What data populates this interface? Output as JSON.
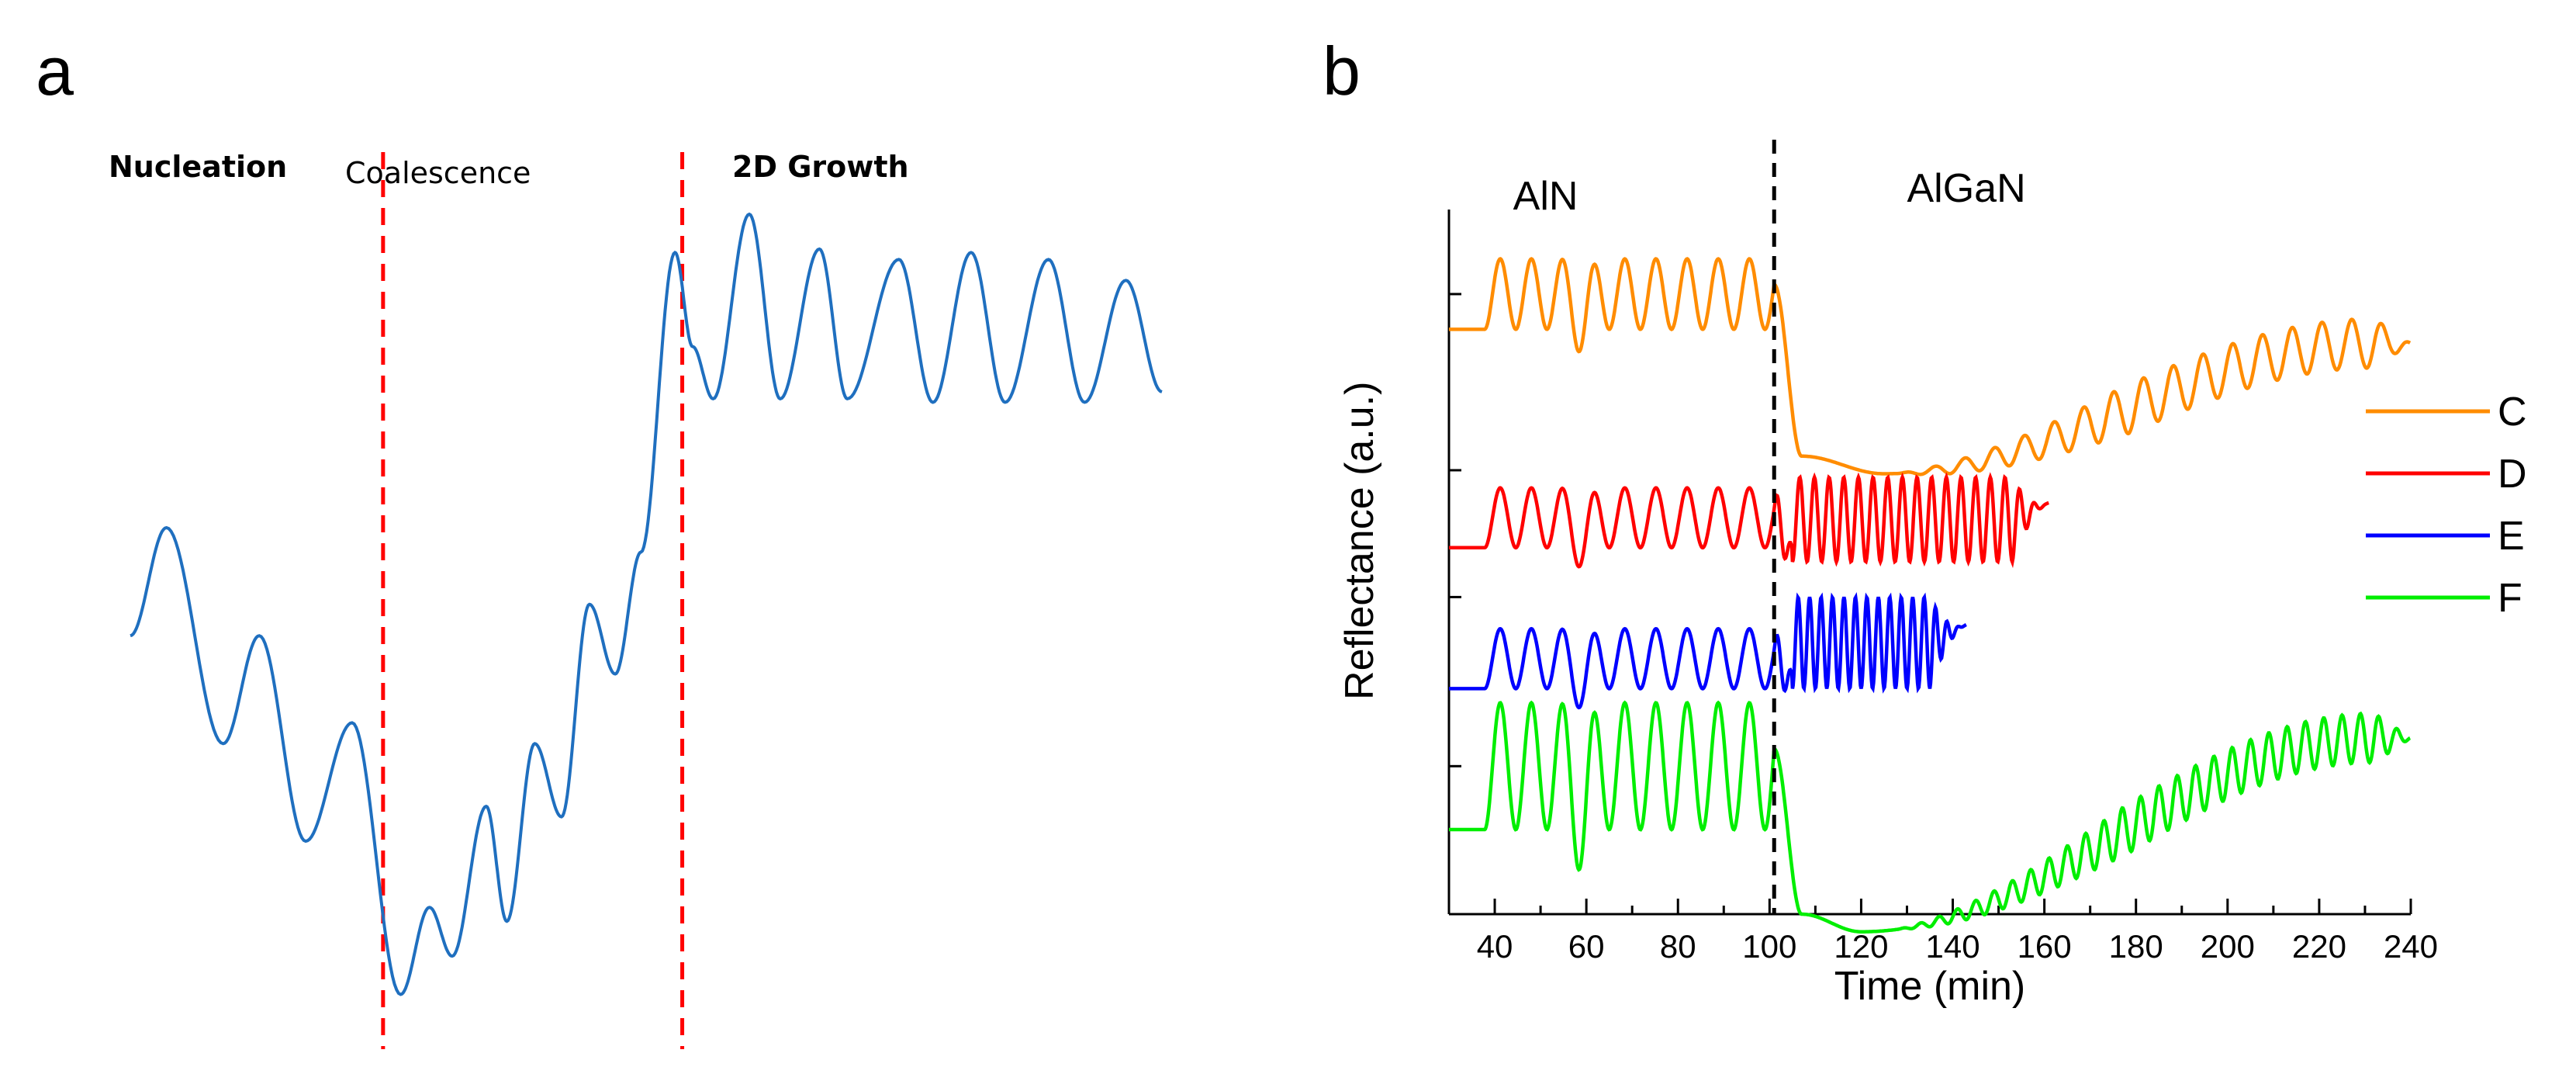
{
  "chart_data": [
    {
      "panel": "a",
      "type": "line",
      "title": "",
      "xlabel": "",
      "ylabel": "",
      "grid": false,
      "phases": [
        "Nucleation",
        "Coalescence",
        "2D Growth"
      ],
      "boundaries": [
        0.245,
        0.535
      ],
      "series": [
        {
          "name": "reflectance",
          "color": "#1f6fbf",
          "description": "schematic reflectance oscillation",
          "keypoints": [
            [
              0.0,
              0.54
            ],
            [
              0.035,
              0.85
            ],
            [
              0.09,
              0.23
            ],
            [
              0.125,
              0.54
            ],
            [
              0.17,
              -0.05
            ],
            [
              0.215,
              0.29
            ],
            [
              0.262,
              -0.49
            ],
            [
              0.29,
              -0.24
            ],
            [
              0.312,
              -0.38
            ],
            [
              0.345,
              0.05
            ],
            [
              0.365,
              -0.28
            ],
            [
              0.392,
              0.23
            ],
            [
              0.418,
              0.02
            ],
            [
              0.445,
              0.63
            ],
            [
              0.47,
              0.43
            ],
            [
              0.495,
              0.78
            ],
            [
              0.528,
              1.64
            ],
            [
              0.545,
              1.37
            ],
            [
              0.565,
              1.22
            ],
            [
              0.6,
              1.75
            ],
            [
              0.63,
              1.22
            ],
            [
              0.668,
              1.65
            ],
            [
              0.695,
              1.22
            ],
            [
              0.745,
              1.62
            ],
            [
              0.778,
              1.21
            ],
            [
              0.815,
              1.64
            ],
            [
              0.848,
              1.21
            ],
            [
              0.89,
              1.62
            ],
            [
              0.925,
              1.21
            ],
            [
              0.965,
              1.56
            ],
            [
              1.0,
              1.24
            ]
          ]
        }
      ]
    },
    {
      "panel": "b",
      "type": "line",
      "title": "",
      "xlabel": "Time (min)",
      "ylabel": "Reflectance (a.u.)",
      "xlim": [
        30,
        240
      ],
      "xticks": [
        40,
        60,
        80,
        100,
        120,
        140,
        160,
        180,
        200,
        220,
        240
      ],
      "ylim": [
        0,
        10
      ],
      "grid": false,
      "legend_position": "right",
      "regions": [
        {
          "label": "AlN",
          "x_from": 30,
          "x_to": 101
        },
        {
          "label": "AlGaN",
          "x_from": 101,
          "x_to": 240
        }
      ],
      "divider_x": 101,
      "series": [
        {
          "name": "C",
          "color": "#ff8c00",
          "x_start": 30,
          "x_end": 240,
          "baseline": 8.3,
          "aln_amplitude": 1.0,
          "algan_start": 6.5,
          "algan_min": 6.25,
          "algan_min_time": 125,
          "algan_end": 8.1,
          "algan_fringe_amplitude": 0.35,
          "algan_period": 6.5
        },
        {
          "name": "D",
          "color": "#ff0000",
          "x_start": 30,
          "x_end": 161,
          "baseline": 5.2,
          "aln_amplitude": 0.85,
          "algan_low": 5.0,
          "algan_high": 6.2,
          "algan_period": 3.2
        },
        {
          "name": "E",
          "color": "#0000ff",
          "x_start": 30,
          "x_end": 143,
          "baseline": 3.2,
          "aln_amplitude": 0.85,
          "algan_low": 3.2,
          "algan_high": 4.5,
          "algan_period": 2.5
        },
        {
          "name": "F",
          "color": "#00ee00",
          "x_start": 30,
          "x_end": 240,
          "baseline": 1.2,
          "aln_amplitude": 1.8,
          "algan_start": 0.0,
          "algan_min": -0.25,
          "algan_min_time": 120,
          "algan_end": 2.5,
          "algan_fringe_amplitude": 0.35,
          "algan_period": 4.0
        }
      ]
    }
  ],
  "panels": {
    "a": {
      "label": "a"
    },
    "b": {
      "label": "b"
    }
  },
  "panel_a": {
    "phase_nucleation": "Nucleation",
    "phase_coalescence": "Coalescence",
    "phase_2d_growth": "2D Growth",
    "curve_color": "#1f6fbf",
    "divider_color": "#ff0000"
  },
  "panel_b": {
    "region_aln": "AlN",
    "region_algan": "AlGaN",
    "xlabel": "Time (min)",
    "ylabel": "Reflectance (a.u.)",
    "tick_labels": [
      "40",
      "60",
      "80",
      "100",
      "120",
      "140",
      "160",
      "180",
      "200",
      "220",
      "240"
    ],
    "legend": [
      {
        "label": "C",
        "color": "#ff8c00"
      },
      {
        "label": "D",
        "color": "#ff0000"
      },
      {
        "label": "E",
        "color": "#0000ff"
      },
      {
        "label": "F",
        "color": "#00ee00"
      }
    ]
  }
}
